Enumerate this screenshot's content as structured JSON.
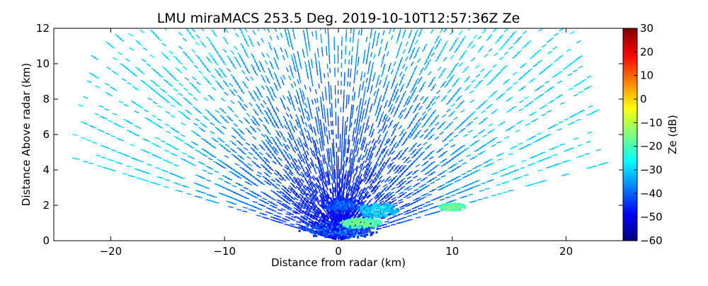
{
  "chart_data": {
    "type": "heatmap",
    "title": "LMU miraMACS 253.5 Deg. 2019-10-10T12:57:36Z  Ze",
    "xlabel": "Distance from radar (km)",
    "ylabel": "Distance Above radar  (km)",
    "xlim": [
      -25,
      25
    ],
    "ylim": [
      0,
      12
    ],
    "xticks": [
      -20,
      -10,
      0,
      10,
      20
    ],
    "yticks": [
      0,
      2,
      4,
      6,
      8,
      10,
      12
    ],
    "colorbar": {
      "label": "Ze (dB)",
      "range": [
        -60,
        30
      ],
      "ticks": [
        30,
        20,
        10,
        0,
        -10,
        -20,
        -30,
        -40,
        -50,
        -60
      ],
      "colormap": "jet",
      "colors": [
        "#00007f",
        "#0000ff",
        "#007fff",
        "#00ffff",
        "#7fff7f",
        "#ffff00",
        "#ff7f00",
        "#ff0000",
        "#7f0000"
      ]
    },
    "scan": {
      "azimuth_deg": 253.5,
      "max_range_km": 24,
      "min_elevation_deg": 10,
      "background_ze_dB": {
        "far": -30,
        "near": -50
      }
    },
    "echoes": [
      {
        "x": 0.0,
        "y": 0.6,
        "rx": 3.5,
        "ry": 0.5,
        "ze": -43
      },
      {
        "x": 2.0,
        "y": 1.0,
        "rx": 1.8,
        "ry": 0.3,
        "ze": -20
      },
      {
        "x": 0.5,
        "y": 2.0,
        "rx": 1.8,
        "ry": 0.4,
        "ze": -45
      },
      {
        "x": 3.5,
        "y": 1.7,
        "rx": 1.8,
        "ry": 0.4,
        "ze": -33
      },
      {
        "x": 10.0,
        "y": 1.9,
        "rx": 1.2,
        "ry": 0.2,
        "ze": -20
      }
    ]
  }
}
